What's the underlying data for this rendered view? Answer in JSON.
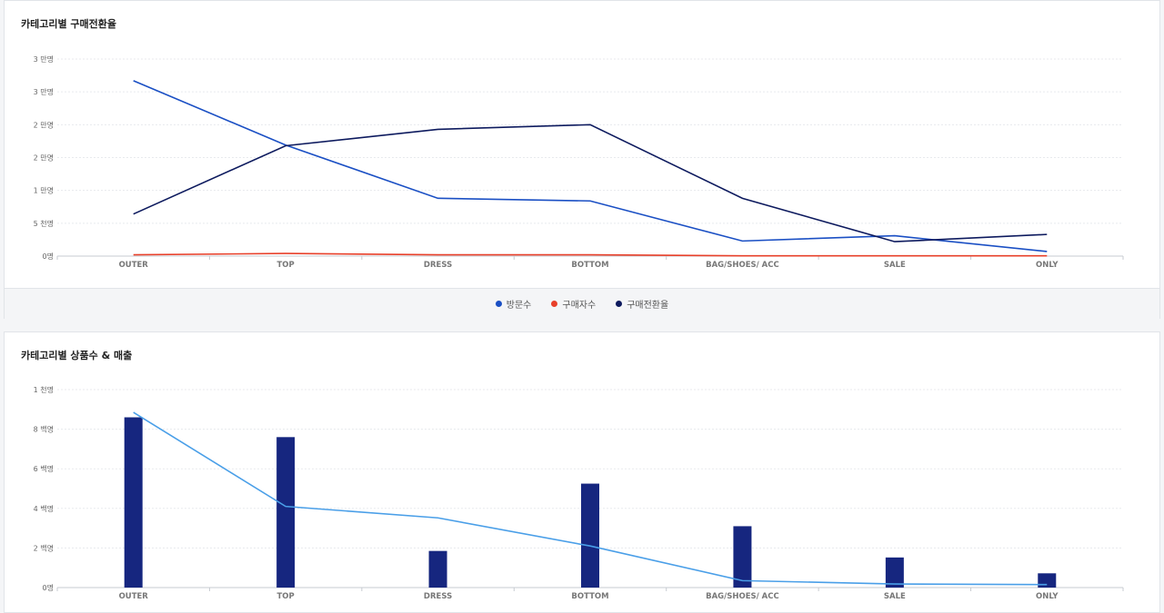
{
  "chart_data": [
    {
      "type": "line",
      "title": "카테고리별 구매전환율",
      "categories": [
        "OUTER",
        "TOP",
        "DRESS",
        "BOTTOM",
        "BAG/SHOES/ ACC",
        "SALE",
        "ONLY"
      ],
      "y_ticks": [
        "0명",
        "5 천명",
        "1 만명",
        "2 만명",
        "2 만명",
        "3 만명",
        "3 만명"
      ],
      "ylim": [
        0,
        30000
      ],
      "series": [
        {
          "name": "방문수",
          "color": "#1a4fc4",
          "values": [
            26700,
            16900,
            8800,
            8400,
            2300,
            3100,
            700
          ]
        },
        {
          "name": "구매자수",
          "color": "#e8402a",
          "values": [
            200,
            400,
            200,
            200,
            50,
            50,
            50
          ]
        },
        {
          "name": "구매전환율",
          "color": "#0d1a5e",
          "values": [
            6400,
            16800,
            19300,
            20000,
            8800,
            2200,
            3300
          ]
        }
      ],
      "legend_position": "bottom"
    },
    {
      "type": "bar",
      "title": "카테고리별 상품수 & 매출",
      "categories": [
        "OUTER",
        "TOP",
        "DRESS",
        "BOTTOM",
        "BAG/SHOES/ ACC",
        "SALE",
        "ONLY"
      ],
      "y_ticks": [
        "0명",
        "2 백명",
        "4 백명",
        "6 백명",
        "8 백명",
        "1 천명"
      ],
      "ylim": [
        0,
        1000
      ],
      "bar_color": "#16267f",
      "line_color": "#4a9fe8",
      "bar_values": [
        860,
        760,
        185,
        525,
        310,
        152,
        72
      ],
      "line_values": [
        885,
        410,
        352,
        210,
        35,
        18,
        15
      ]
    }
  ]
}
